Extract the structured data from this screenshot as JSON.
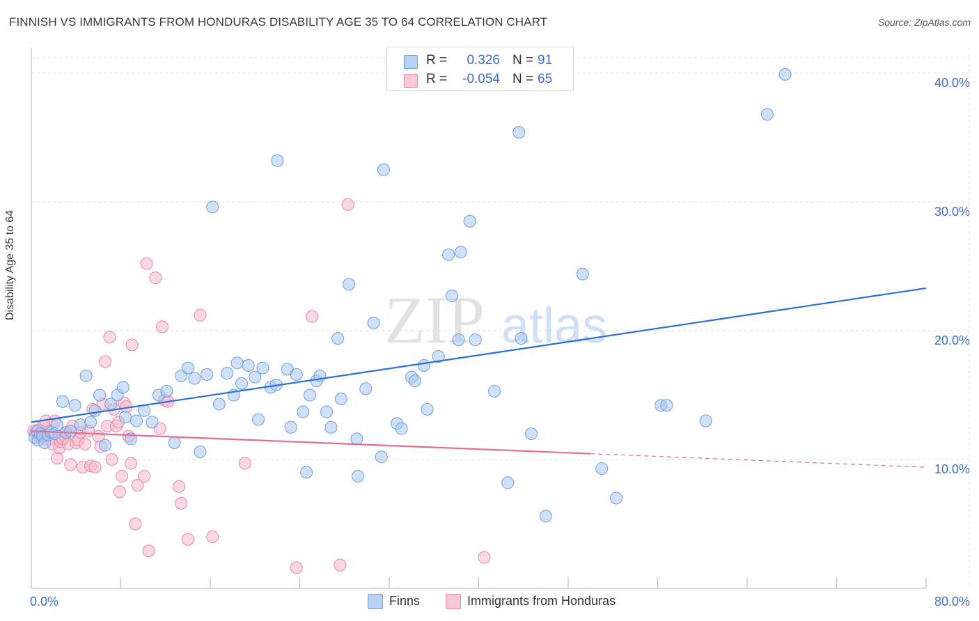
{
  "header": {
    "title": "FINNISH VS IMMIGRANTS FROM HONDURAS DISABILITY AGE 35 TO 64 CORRELATION CHART",
    "source": "Source: ZipAtlas.com"
  },
  "watermark": {
    "zip": "ZIP",
    "atlas": "atlas"
  },
  "legend": {
    "rows": [
      {
        "r_label": "R =",
        "r_value": "0.326",
        "n_label": "N =",
        "n_value": "91"
      },
      {
        "r_label": "R =",
        "r_value": "-0.054",
        "n_label": "N =",
        "n_value": "65"
      }
    ]
  },
  "bottom_legend": {
    "series1": "Finns",
    "series2": "Immigrants from Honduras"
  },
  "colors": {
    "finns_fill": "#a9c6ef",
    "finns_stroke": "#6f9ee0",
    "finns_line": "#2a6fd6",
    "honduras_fill": "#f6b9cc",
    "honduras_stroke": "#ea86a6",
    "honduras_line": "#e36b96",
    "axis_text": "#3b6fd0",
    "grid": "#dcdcdc"
  },
  "chart_data": {
    "type": "scatter",
    "title": "FINNISH VS IMMIGRANTS FROM HONDURAS DISABILITY AGE 35 TO 64 CORRELATION CHART",
    "xlabel": "",
    "ylabel": "Disability Age 35 to 64",
    "xlim": [
      0,
      80
    ],
    "ylim": [
      0,
      42
    ],
    "x_tick_labels": [
      "0.0%",
      "80.0%"
    ],
    "y_ticks": [
      10,
      20,
      30,
      40
    ],
    "y_tick_labels": [
      "10.0%",
      "20.0%",
      "30.0%",
      "40.0%"
    ],
    "series": [
      {
        "name": "Finns",
        "R": 0.326,
        "N": 91,
        "trend": {
          "x": [
            0,
            80
          ],
          "y": [
            12.9,
            23.3
          ],
          "dashed_from": null
        },
        "points": [
          [
            0.3,
            11.7
          ],
          [
            0.5,
            12.2
          ],
          [
            0.6,
            11.5
          ],
          [
            0.8,
            12.0
          ],
          [
            1.0,
            11.8
          ],
          [
            1.2,
            11.3
          ],
          [
            1.5,
            11.9
          ],
          [
            1.8,
            12.1
          ],
          [
            2.1,
            12.0
          ],
          [
            2.3,
            12.7
          ],
          [
            2.8,
            14.5
          ],
          [
            3.1,
            12.1
          ],
          [
            3.5,
            12.2
          ],
          [
            3.9,
            14.2
          ],
          [
            4.4,
            12.7
          ],
          [
            4.9,
            16.5
          ],
          [
            5.3,
            12.9
          ],
          [
            5.7,
            13.8
          ],
          [
            6.1,
            15.0
          ],
          [
            6.6,
            11.1
          ],
          [
            7.1,
            14.3
          ],
          [
            7.7,
            15.0
          ],
          [
            8.2,
            15.6
          ],
          [
            8.4,
            13.3
          ],
          [
            8.9,
            11.6
          ],
          [
            9.4,
            13.0
          ],
          [
            10.1,
            13.8
          ],
          [
            10.8,
            12.9
          ],
          [
            11.4,
            15.0
          ],
          [
            12.1,
            15.3
          ],
          [
            12.8,
            11.3
          ],
          [
            13.4,
            16.5
          ],
          [
            14.0,
            17.1
          ],
          [
            14.6,
            16.3
          ],
          [
            15.1,
            10.6
          ],
          [
            15.7,
            16.6
          ],
          [
            16.2,
            29.6
          ],
          [
            16.8,
            14.3
          ],
          [
            17.5,
            16.7
          ],
          [
            18.1,
            15.0
          ],
          [
            18.4,
            17.5
          ],
          [
            18.8,
            15.9
          ],
          [
            19.4,
            17.3
          ],
          [
            20.0,
            16.4
          ],
          [
            20.3,
            13.1
          ],
          [
            20.7,
            17.1
          ],
          [
            21.4,
            15.6
          ],
          [
            21.9,
            15.8
          ],
          [
            22.0,
            33.2
          ],
          [
            22.9,
            17.0
          ],
          [
            23.2,
            12.5
          ],
          [
            23.7,
            16.6
          ],
          [
            24.3,
            13.7
          ],
          [
            24.6,
            9.0
          ],
          [
            24.9,
            15.0
          ],
          [
            25.5,
            16.1
          ],
          [
            25.8,
            16.5
          ],
          [
            26.4,
            13.7
          ],
          [
            26.8,
            12.5
          ],
          [
            27.4,
            19.4
          ],
          [
            27.7,
            14.7
          ],
          [
            28.4,
            23.6
          ],
          [
            29.1,
            11.6
          ],
          [
            29.2,
            8.7
          ],
          [
            29.9,
            15.5
          ],
          [
            30.6,
            20.6
          ],
          [
            31.3,
            10.2
          ],
          [
            31.5,
            32.5
          ],
          [
            32.7,
            12.8
          ],
          [
            33.1,
            12.4
          ],
          [
            34.0,
            16.4
          ],
          [
            34.3,
            16.1
          ],
          [
            35.1,
            17.3
          ],
          [
            35.4,
            13.9
          ],
          [
            36.4,
            18.0
          ],
          [
            37.3,
            25.9
          ],
          [
            37.6,
            22.7
          ],
          [
            38.2,
            19.3
          ],
          [
            38.4,
            26.1
          ],
          [
            39.2,
            28.5
          ],
          [
            39.7,
            19.3
          ],
          [
            41.4,
            15.3
          ],
          [
            42.6,
            8.2
          ],
          [
            43.6,
            35.4
          ],
          [
            43.8,
            19.4
          ],
          [
            44.7,
            12.0
          ],
          [
            46.0,
            5.6
          ],
          [
            49.3,
            24.4
          ],
          [
            51.0,
            9.3
          ],
          [
            52.3,
            7.0
          ],
          [
            56.3,
            14.2
          ],
          [
            56.8,
            14.2
          ],
          [
            60.3,
            13.0
          ],
          [
            65.8,
            36.8
          ],
          [
            67.4,
            39.9
          ]
        ]
      },
      {
        "name": "Immigrants from Honduras",
        "R": -0.054,
        "N": 65,
        "trend": {
          "x": [
            0,
            80
          ],
          "y": [
            12.2,
            9.4
          ],
          "dashed_from": 50
        },
        "points": [
          [
            0.2,
            12.2
          ],
          [
            0.4,
            12.1
          ],
          [
            0.6,
            12.3
          ],
          [
            0.7,
            11.8
          ],
          [
            0.9,
            12.0
          ],
          [
            1.1,
            12.6
          ],
          [
            1.3,
            13.0
          ],
          [
            1.5,
            11.5
          ],
          [
            1.7,
            12.2
          ],
          [
            1.9,
            11.2
          ],
          [
            2.1,
            13.0
          ],
          [
            2.3,
            10.1
          ],
          [
            2.5,
            10.9
          ],
          [
            2.6,
            11.4
          ],
          [
            2.8,
            11.6
          ],
          [
            3.0,
            11.8
          ],
          [
            3.1,
            12.1
          ],
          [
            3.3,
            11.2
          ],
          [
            3.5,
            9.6
          ],
          [
            3.7,
            12.6
          ],
          [
            4.0,
            11.3
          ],
          [
            4.2,
            11.5
          ],
          [
            4.4,
            12.1
          ],
          [
            4.6,
            9.4
          ],
          [
            4.8,
            11.2
          ],
          [
            5.1,
            12.2
          ],
          [
            5.3,
            9.5
          ],
          [
            5.5,
            13.9
          ],
          [
            5.7,
            9.4
          ],
          [
            6.0,
            11.8
          ],
          [
            6.2,
            11.0
          ],
          [
            6.4,
            14.3
          ],
          [
            6.6,
            17.6
          ],
          [
            6.8,
            12.6
          ],
          [
            7.0,
            19.5
          ],
          [
            7.2,
            10.0
          ],
          [
            7.4,
            13.9
          ],
          [
            7.6,
            12.6
          ],
          [
            7.8,
            12.9
          ],
          [
            7.9,
            7.5
          ],
          [
            8.1,
            8.7
          ],
          [
            8.3,
            14.4
          ],
          [
            8.5,
            14.1
          ],
          [
            8.7,
            11.8
          ],
          [
            8.9,
            9.7
          ],
          [
            9.0,
            18.9
          ],
          [
            9.3,
            5.0
          ],
          [
            9.5,
            8.0
          ],
          [
            10.1,
            8.7
          ],
          [
            10.3,
            25.2
          ],
          [
            10.5,
            2.9
          ],
          [
            11.1,
            24.1
          ],
          [
            11.5,
            12.4
          ],
          [
            11.7,
            20.3
          ],
          [
            11.9,
            14.6
          ],
          [
            12.2,
            14.5
          ],
          [
            13.2,
            7.9
          ],
          [
            13.4,
            6.6
          ],
          [
            14.0,
            3.8
          ],
          [
            15.1,
            21.2
          ],
          [
            16.2,
            4.0
          ],
          [
            19.1,
            9.7
          ],
          [
            23.7,
            1.6
          ],
          [
            25.1,
            21.1
          ],
          [
            27.6,
            1.8
          ],
          [
            28.3,
            29.8
          ],
          [
            40.5,
            2.4
          ]
        ]
      }
    ]
  }
}
